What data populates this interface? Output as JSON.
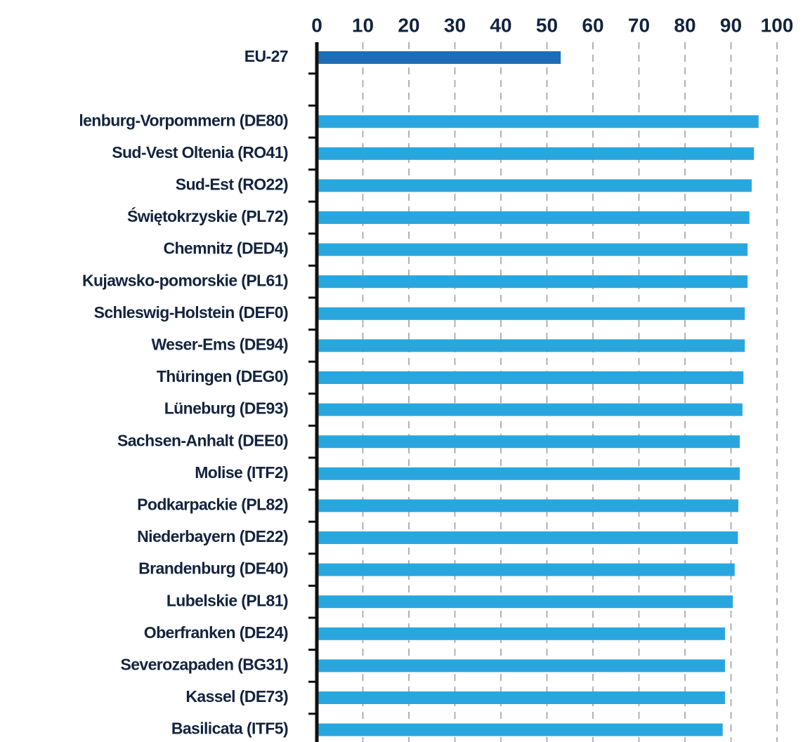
{
  "chart_data": {
    "type": "barh",
    "categories": [
      "EU-27",
      null,
      "lenburg-Vorpommern (DE80)",
      "Sud-Vest Oltenia (RO41)",
      "Sud-Est (RO22)",
      "Świętokrzyskie (PL72)",
      "Chemnitz (DED4)",
      "Kujawsko-pomorskie (PL61)",
      "Schleswig-Holstein (DEF0)",
      "Weser-Ems (DE94)",
      "Thüringen (DEG0)",
      "Lüneburg (DE93)",
      "Sachsen-Anhalt (DEE0)",
      "Molise (ITF2)",
      "Podkarpackie (PL82)",
      "Niederbayern (DE22)",
      "Brandenburg (DE40)",
      "Lubelskie (PL81)",
      "Oberfranken (DE24)",
      "Severozapaden (BG31)",
      "Kassel (DE73)",
      "Basilicata (ITF5)"
    ],
    "values": [
      53,
      null,
      96,
      95,
      94.5,
      94,
      93.6,
      93.6,
      93,
      93,
      92.7,
      92.5,
      91.9,
      91.9,
      91.6,
      91.5,
      90.8,
      90.4,
      88.7,
      88.7,
      88.7,
      88.2
    ],
    "colors": [
      "#1f6db5",
      null,
      "#2aa6df",
      "#2aa6df",
      "#2aa6df",
      "#2aa6df",
      "#2aa6df",
      "#2aa6df",
      "#2aa6df",
      "#2aa6df",
      "#2aa6df",
      "#2aa6df",
      "#2aa6df",
      "#2aa6df",
      "#2aa6df",
      "#2aa6df",
      "#2aa6df",
      "#2aa6df",
      "#2aa6df",
      "#2aa6df",
      "#2aa6df",
      "#2aa6df"
    ],
    "xlim": [
      0,
      100
    ],
    "xticks": [
      0,
      10,
      20,
      30,
      40,
      50,
      60,
      70,
      80,
      90,
      100
    ],
    "grid": true
  }
}
